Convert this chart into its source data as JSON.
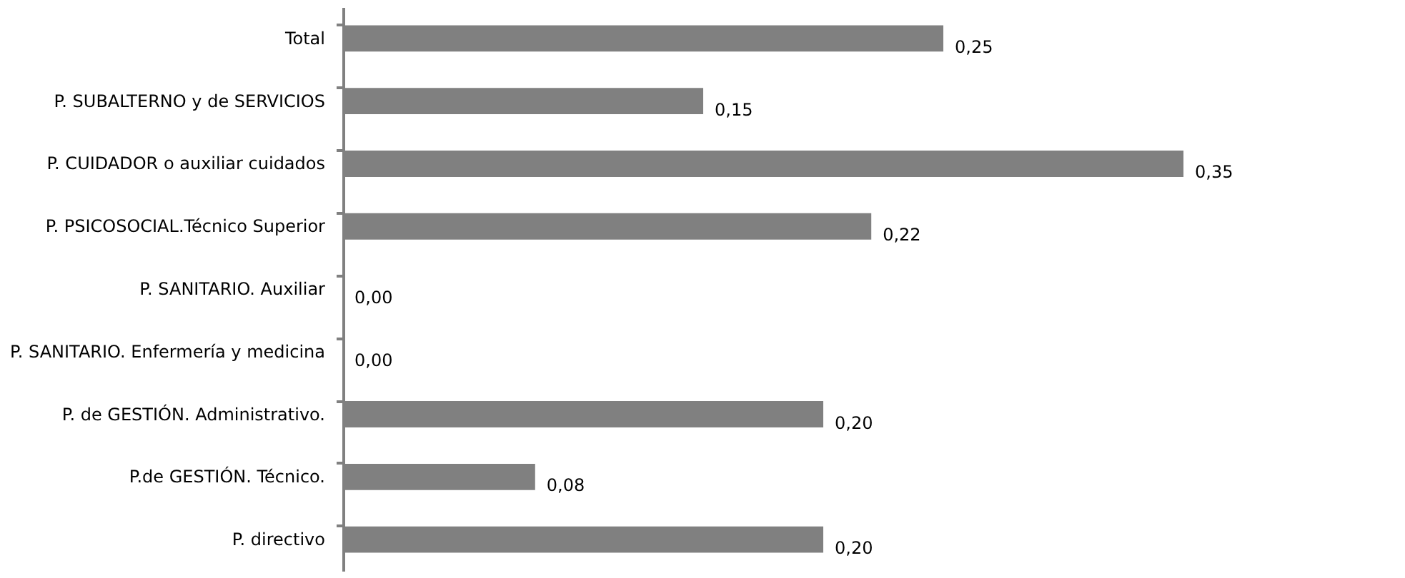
{
  "chart_data": {
    "type": "bar",
    "orientation": "horizontal",
    "color": "#808080",
    "categories": [
      "Total",
      "P. SUBALTERNO y de SERVICIOS",
      "P. CUIDADOR o auxiliar cuidados",
      "P. PSICOSOCIAL.Técnico Superior",
      "P. SANITARIO. Auxiliar",
      "P. SANITARIO. Enfermería y medicina",
      "P. de GESTIÓN. Administrativo.",
      "P.de GESTIÓN. Técnico.",
      "P. directivo"
    ],
    "values": [
      0.25,
      0.15,
      0.35,
      0.22,
      0,
      0,
      0.2,
      0.08,
      0.2
    ],
    "value_labels": [
      "0,25",
      "0,15",
      "0,35",
      "0,22",
      "0,00",
      "0,00",
      "0,20",
      "0,08",
      "0,20"
    ],
    "grid": false
  }
}
